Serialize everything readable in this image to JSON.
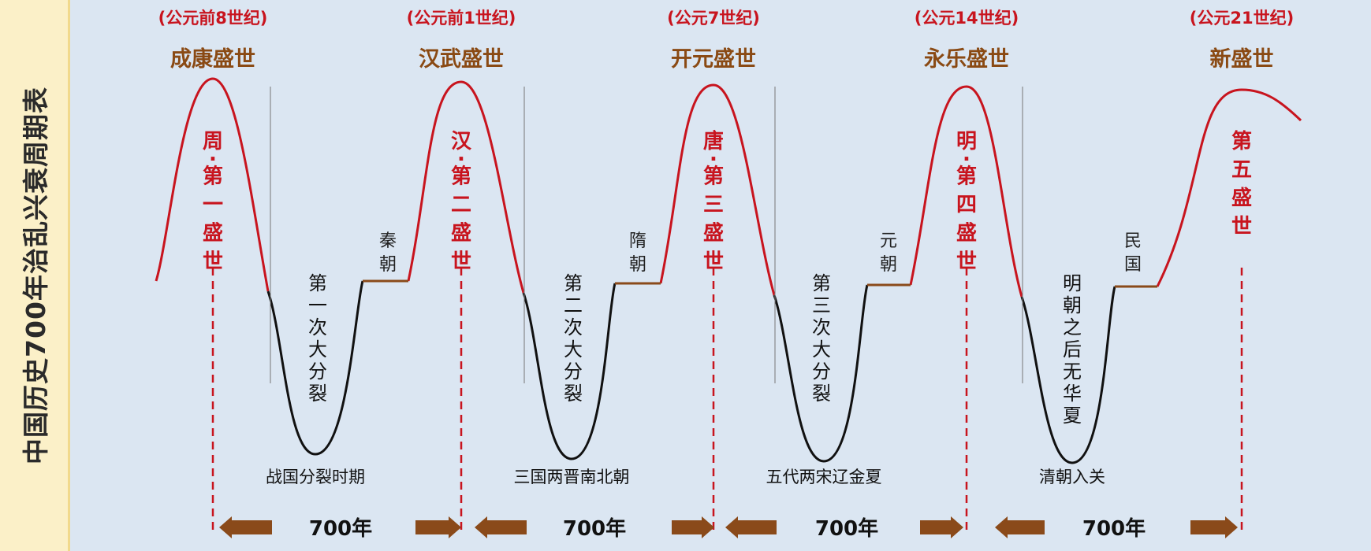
{
  "title": "中国历史700年治乱兴衰周期表",
  "peaks": [
    {
      "era": "(公元前8世纪)",
      "name": "成康盛世",
      "vertical": "周·第一盛世"
    },
    {
      "era": "(公元前1世纪)",
      "name": "汉武盛世",
      "vertical": "汉·第二盛世"
    },
    {
      "era": "(公元7世纪)",
      "name": "开元盛世",
      "vertical": "唐·第三盛世"
    },
    {
      "era": "(公元14世纪)",
      "name": "永乐盛世",
      "vertical": "明·第四盛世"
    },
    {
      "era": "(公元21世纪)",
      "name": "新盛世",
      "vertical": "第五盛世"
    }
  ],
  "troughs": [
    {
      "vertical": "第一次大分裂",
      "period": "战国分裂时期",
      "unifier": "秦朝"
    },
    {
      "vertical": "第二次大分裂",
      "period": "三国两晋南北朝",
      "unifier": "隋朝"
    },
    {
      "vertical": "第三次大分裂",
      "period": "五代两宋辽金夏",
      "unifier": "元朝"
    },
    {
      "vertical": "明朝之后无华夏",
      "period": "清朝入关",
      "unifier": "民国"
    }
  ],
  "interval_label": "700年",
  "colors": {
    "rise": "#c8141e",
    "fall": "#111111",
    "plateau": "#8a4a1a",
    "peak_name": "#8a4a14",
    "era": "#c8141e",
    "arrow": "#8a4a1a",
    "dash": "#c8141e"
  }
}
